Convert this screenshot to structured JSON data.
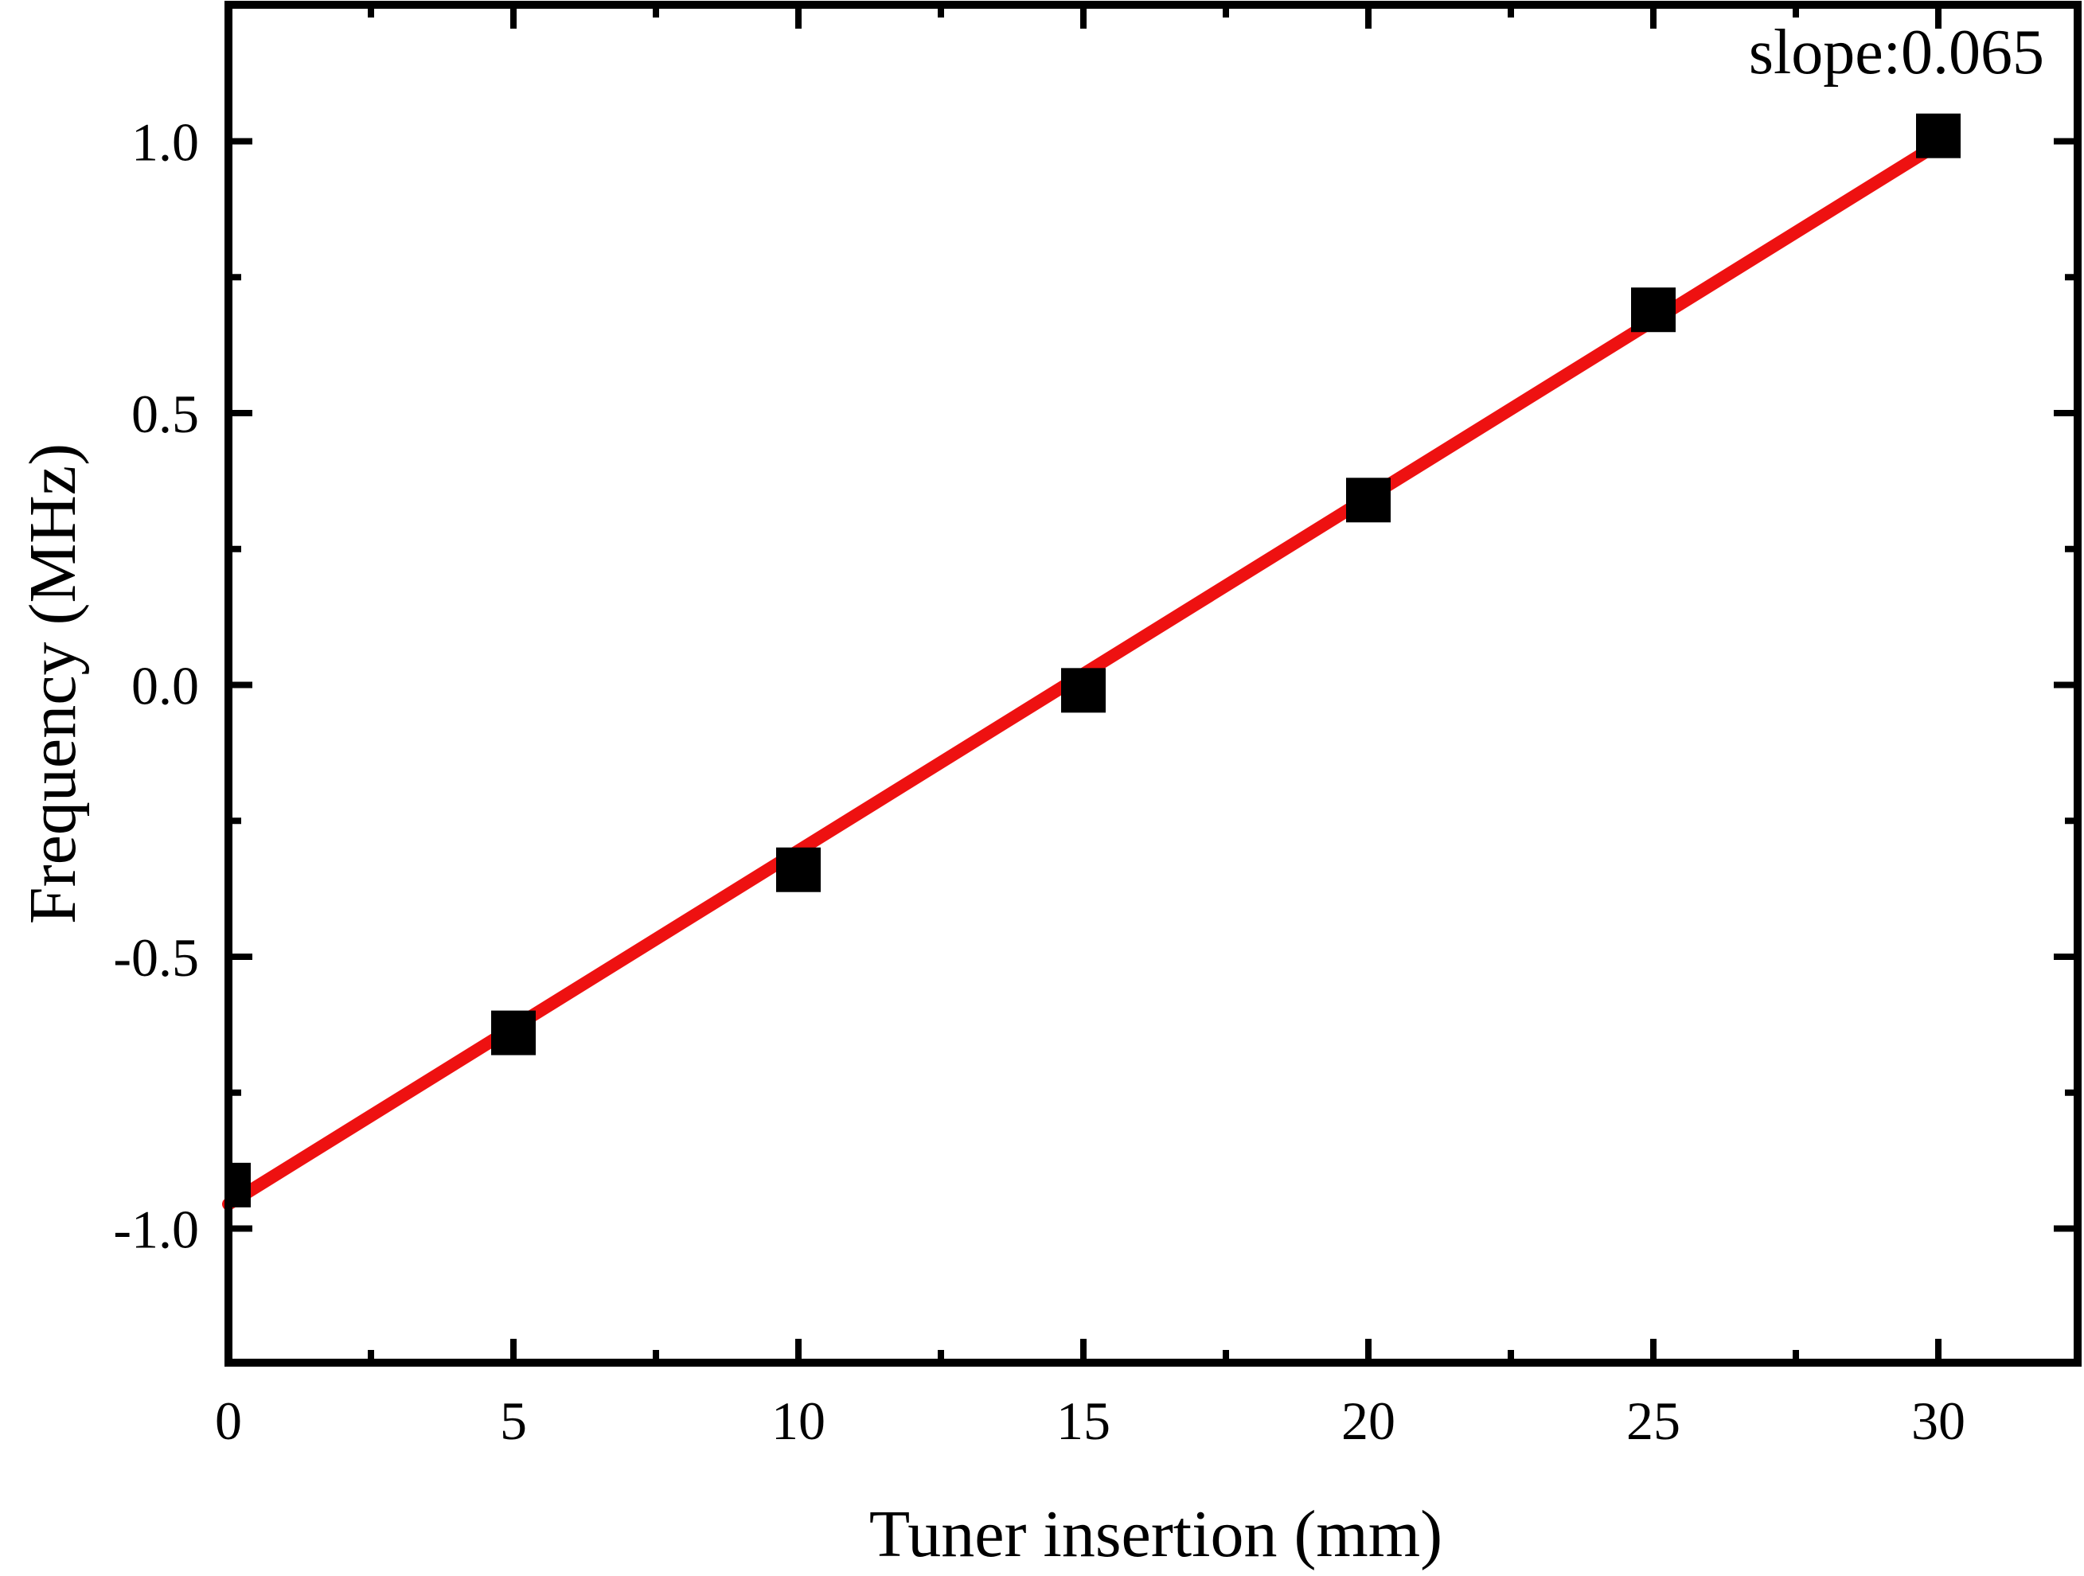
{
  "chart_data": {
    "type": "scatter",
    "xlabel": "Tuner insertion (mm)",
    "ylabel": "Frequency (MHz)",
    "xlim": [
      0,
      32.5
    ],
    "ylim": [
      -1.25,
      1.25
    ],
    "x_ticks": [
      0,
      5,
      10,
      15,
      20,
      25,
      30
    ],
    "x_tick_labels": [
      "0",
      "5",
      "10",
      "15",
      "20",
      "25",
      "30"
    ],
    "y_ticks": [
      -1.0,
      -0.5,
      0.0,
      0.5,
      1.0
    ],
    "y_tick_labels": [
      "-1.0",
      "-0.5",
      "0.0",
      "0.5",
      "1.0"
    ],
    "annotation": "slope:0.065",
    "grid": false,
    "series": [
      {
        "kind": "points",
        "marker": "square",
        "color": "#000000",
        "x": [
          0,
          5,
          10,
          15,
          20,
          25,
          30
        ],
        "y": [
          -0.92,
          -0.64,
          -0.34,
          -0.01,
          0.34,
          0.69,
          1.01
        ]
      },
      {
        "kind": "fit-line",
        "color": "#ee1111",
        "x": [
          0,
          30
        ],
        "y": [
          -0.955,
          0.995
        ]
      }
    ]
  }
}
